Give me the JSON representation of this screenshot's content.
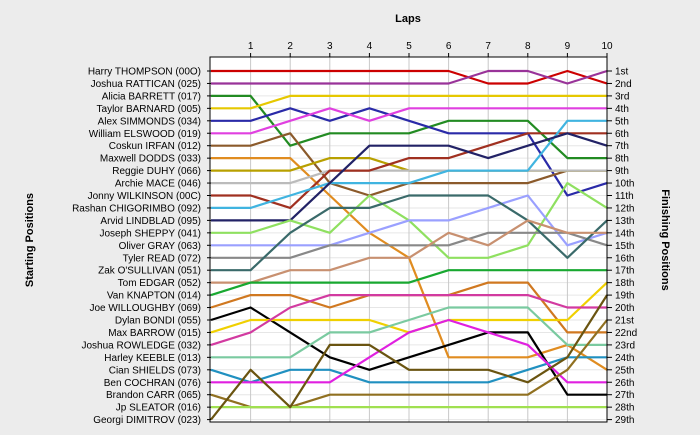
{
  "chart_data": {
    "type": "line",
    "title": "Laps",
    "xlabel": "Laps",
    "ylabel_left": "Starting Positions",
    "ylabel_right": "Finishing Positions",
    "x": [
      0,
      1,
      2,
      3,
      4,
      5,
      6,
      7,
      8,
      9,
      10
    ],
    "x_tick_labels": [
      "1",
      "2",
      "3",
      "4",
      "5",
      "6",
      "7",
      "8",
      "9",
      "10"
    ],
    "ylim": [
      1,
      29
    ],
    "y_inverted": true,
    "grid": true,
    "background": "#ffffff",
    "frame_bg": "#ececec",
    "starting_positions": [
      "Harry THOMPSON (00O)",
      "Joshua RATTICAN (025)",
      "Alicia BARRETT (017)",
      "Taylor BARNARD (005)",
      "Alex SIMMONDS (034)",
      "William ELSWOOD (019)",
      "Coskun IRFAN (012)",
      "Maxwell DODDS (033)",
      "Reggie DUHY (066)",
      "Archie MACE (046)",
      "Jonny WILKINSON (00C)",
      "Rashan CHIGORIMBO (092)",
      "Arvid LINDBLAD (095)",
      "Joseph SHEPPY (041)",
      "Oliver GRAY (063)",
      "Tyler READ (072)",
      "Zak O'SULLIVAN (051)",
      "Tom EDGAR (052)",
      "Van KNAPTON (014)",
      "Joe WILLOUGHBY (069)",
      "Dylan BONDI (055)",
      "Max BARROW (015)",
      "Joshua ROWLEDGE (032)",
      "Harley KEEBLE (013)",
      "Cian SHIELDS (073)",
      "Ben COCHRAN (076)",
      "Brandon CARR (065)",
      "Jp SLEATOR (016)",
      "Georgi DIMITROV (023)"
    ],
    "finishing_positions": [
      "1st",
      "2nd",
      "3rd",
      "4th",
      "5th",
      "6th",
      "7th",
      "8th",
      "9th",
      "10th",
      "11th",
      "12th",
      "13th",
      "14th",
      "15th",
      "16th",
      "17th",
      "18th",
      "19th",
      "20th",
      "21st",
      "22nd",
      "23rd",
      "24th",
      "25th",
      "26th",
      "27th",
      "28th",
      "29th"
    ],
    "series": [
      {
        "color": "#cc0000",
        "values": [
          1,
          1,
          1,
          1,
          1,
          1,
          1,
          2,
          2,
          1,
          2
        ]
      },
      {
        "color": "#993399",
        "values": [
          2,
          2,
          2,
          2,
          2,
          2,
          2,
          1,
          1,
          2,
          1
        ]
      },
      {
        "color": "#228b22",
        "values": [
          3,
          3,
          7,
          6,
          6,
          6,
          5,
          5,
          5,
          8,
          8
        ]
      },
      {
        "color": "#e6c800",
        "values": [
          4,
          4,
          3,
          3,
          3,
          3,
          3,
          3,
          3,
          3,
          3
        ]
      },
      {
        "color": "#2a2aa8",
        "values": [
          5,
          5,
          4,
          5,
          4,
          5,
          6,
          6,
          6,
          11,
          10
        ]
      },
      {
        "color": "#e040e0",
        "values": [
          6,
          6,
          5,
          4,
          5,
          4,
          4,
          4,
          4,
          4,
          4
        ]
      },
      {
        "color": "#8b5a2b",
        "values": [
          7,
          7,
          6,
          10,
          11,
          10,
          10,
          10,
          10,
          9,
          9
        ]
      },
      {
        "color": "#e08c20",
        "values": [
          8,
          8,
          8,
          11,
          14,
          16,
          24,
          24,
          24,
          23,
          25
        ]
      },
      {
        "color": "#b8a000",
        "values": [
          9,
          9,
          9,
          8,
          8,
          9,
          9,
          9,
          9,
          9,
          9
        ]
      },
      {
        "color": "#bbbbbb",
        "values": [
          10,
          10,
          10,
          9,
          9,
          9,
          9,
          9,
          9,
          9,
          9
        ]
      },
      {
        "color": "#a03020",
        "values": [
          11,
          11,
          12,
          9,
          9,
          8,
          8,
          7,
          6,
          6,
          6
        ]
      },
      {
        "color": "#40b4e0",
        "values": [
          12,
          12,
          11,
          10,
          10,
          10,
          9,
          9,
          9,
          5,
          5
        ]
      },
      {
        "color": "#222266",
        "values": [
          13,
          13,
          13,
          10,
          7,
          7,
          7,
          8,
          7,
          6,
          7
        ]
      },
      {
        "color": "#8fe060",
        "values": [
          14,
          14,
          13,
          14,
          11,
          13,
          16,
          16,
          15,
          10,
          12
        ]
      },
      {
        "color": "#9aa0ff",
        "values": [
          15,
          15,
          15,
          15,
          14,
          13,
          13,
          12,
          11,
          15,
          14
        ]
      },
      {
        "color": "#888888",
        "values": [
          16,
          16,
          16,
          15,
          15,
          15,
          15,
          14,
          14,
          14,
          15
        ]
      },
      {
        "color": "#3a6a6a",
        "values": [
          17,
          17,
          14,
          12,
          12,
          11,
          11,
          11,
          13,
          16,
          13
        ]
      },
      {
        "color": "#c89070",
        "values": [
          18,
          18,
          17,
          17,
          16,
          16,
          14,
          15,
          13,
          14,
          14
        ]
      },
      {
        "color": "#18a830",
        "values": [
          19,
          18,
          18,
          18,
          18,
          18,
          17,
          17,
          17,
          17,
          17
        ]
      },
      {
        "color": "#d07820",
        "values": [
          20,
          19,
          19,
          20,
          19,
          19,
          19,
          18,
          18,
          22,
          22
        ]
      },
      {
        "color": "#000000",
        "values": [
          21,
          20,
          22,
          24,
          25,
          24,
          23,
          22,
          22,
          27,
          27
        ]
      },
      {
        "color": "#f0d000",
        "values": [
          22,
          21,
          21,
          21,
          21,
          22,
          21,
          21,
          21,
          21,
          18
        ]
      },
      {
        "color": "#d23aa0",
        "values": [
          23,
          22,
          20,
          19,
          19,
          19,
          19,
          19,
          19,
          20,
          20
        ]
      },
      {
        "color": "#7acaa0",
        "values": [
          24,
          24,
          24,
          22,
          22,
          21,
          20,
          20,
          20,
          23,
          23
        ]
      },
      {
        "color": "#2090c0",
        "values": [
          25,
          26,
          25,
          25,
          26,
          26,
          26,
          26,
          25,
          24,
          24
        ]
      },
      {
        "color": "#e020e0",
        "values": [
          26,
          26,
          26,
          26,
          24,
          22,
          21,
          22,
          23,
          26,
          26
        ]
      },
      {
        "color": "#907020",
        "values": [
          27,
          28,
          28,
          27,
          27,
          27,
          27,
          27,
          27,
          25,
          21
        ]
      },
      {
        "color": "#a0e050",
        "values": [
          28,
          28,
          28,
          28,
          28,
          28,
          28,
          28,
          28,
          28,
          28
        ]
      },
      {
        "color": "#6a5410",
        "values": [
          29,
          25,
          28,
          23,
          23,
          25,
          25,
          25,
          26,
          24,
          19
        ]
      }
    ]
  }
}
